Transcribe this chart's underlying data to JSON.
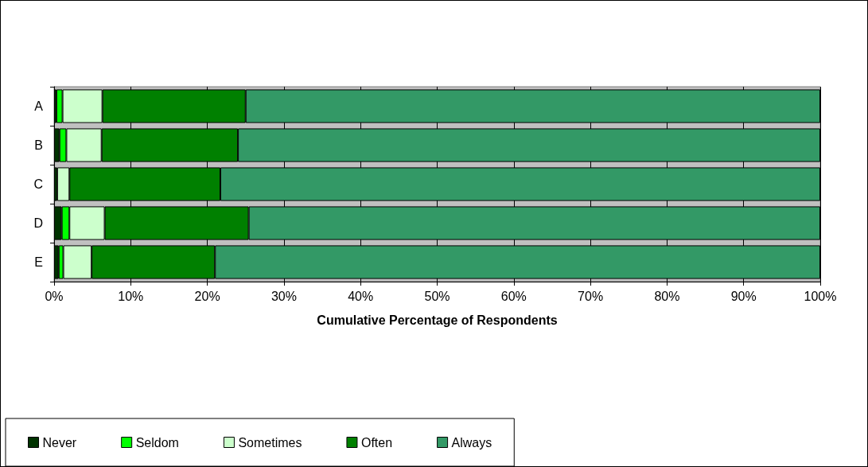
{
  "chart_data": {
    "type": "bar",
    "orientation": "horizontal",
    "stacked": true,
    "xlabel": "Cumulative Percentage of Respondents",
    "categories": [
      "A",
      "B",
      "C",
      "D",
      "E"
    ],
    "series": [
      {
        "name": "Never",
        "color": "#003300",
        "values": [
          0.3,
          0.7,
          0.4,
          1.0,
          0.6
        ]
      },
      {
        "name": "Seldom",
        "color": "#00ff00",
        "values": [
          0.8,
          0.9,
          0,
          1.0,
          0.6
        ]
      },
      {
        "name": "Sometimes",
        "color": "#ccffcc",
        "values": [
          5.2,
          4.6,
          1.6,
          4.6,
          3.7
        ]
      },
      {
        "name": "Often",
        "color": "#008000",
        "values": [
          18.7,
          17.8,
          19.7,
          18.8,
          16.1
        ]
      },
      {
        "name": "Always",
        "color": "#339966",
        "values": [
          75.0,
          76.0,
          78.3,
          74.6,
          79.0
        ]
      }
    ],
    "xlim": [
      0,
      100
    ],
    "xticks": [
      {
        "value": 0,
        "label": "0%"
      },
      {
        "value": 10,
        "label": "10%"
      },
      {
        "value": 20,
        "label": "20%"
      },
      {
        "value": 30,
        "label": "30%"
      },
      {
        "value": 40,
        "label": "40%"
      },
      {
        "value": 50,
        "label": "50%"
      },
      {
        "value": 60,
        "label": "60%"
      },
      {
        "value": 70,
        "label": "70%"
      },
      {
        "value": 80,
        "label": "80%"
      },
      {
        "value": 90,
        "label": "90%"
      },
      {
        "value": 100,
        "label": "100%"
      }
    ],
    "grid": "x",
    "legend": "bottom left"
  }
}
